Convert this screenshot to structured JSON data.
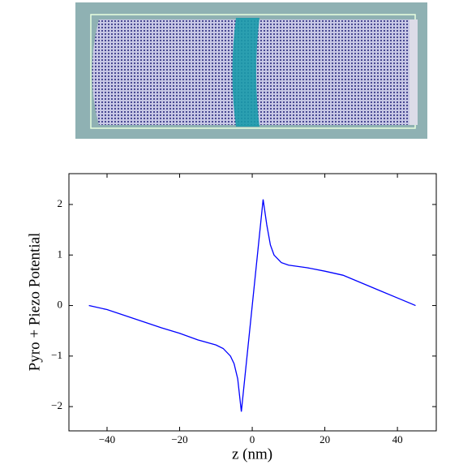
{
  "chart_data": {
    "type": "line",
    "x_label": "z (nm)",
    "y_label": "Pyro + Piezo Potential",
    "x": [
      -45,
      -40,
      -35,
      -30,
      -25,
      -20,
      -15,
      -12,
      -10,
      -8,
      -6,
      -5,
      -4,
      -3,
      -2,
      0,
      2,
      3,
      4,
      5,
      6,
      8,
      10,
      12,
      15,
      20,
      25,
      30,
      35,
      40,
      45
    ],
    "series": [
      {
        "color": "#0000ff",
        "values": [
          0,
          -0.08,
          -0.2,
          -0.32,
          -0.44,
          -0.55,
          -0.68,
          -0.74,
          -0.78,
          -0.85,
          -1.0,
          -1.15,
          -1.45,
          -2.1,
          -1.4,
          0,
          1.4,
          2.1,
          1.6,
          1.2,
          1.0,
          0.85,
          0.8,
          0.78,
          0.75,
          0.68,
          0.6,
          0.45,
          0.3,
          0.15,
          0
        ]
      }
    ],
    "xlim": [
      -50.5,
      50.7
    ],
    "ylim": [
      -2.48,
      2.61
    ],
    "xticks": [
      {
        "value": -40,
        "label": "−40"
      },
      {
        "value": -20,
        "label": "−20"
      },
      0,
      20,
      40
    ],
    "yticks": [
      {
        "value": -2,
        "label": "−2"
      },
      {
        "value": -1,
        "label": "−1"
      },
      0,
      1,
      2
    ]
  }
}
